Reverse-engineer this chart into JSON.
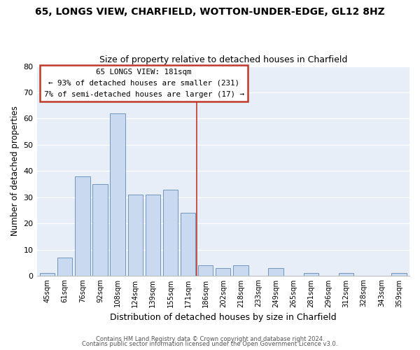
{
  "title": "65, LONGS VIEW, CHARFIELD, WOTTON-UNDER-EDGE, GL12 8HZ",
  "subtitle": "Size of property relative to detached houses in Charfield",
  "xlabel": "Distribution of detached houses by size in Charfield",
  "ylabel": "Number of detached properties",
  "bar_labels": [
    "45sqm",
    "61sqm",
    "76sqm",
    "92sqm",
    "108sqm",
    "124sqm",
    "139sqm",
    "155sqm",
    "171sqm",
    "186sqm",
    "202sqm",
    "218sqm",
    "233sqm",
    "249sqm",
    "265sqm",
    "281sqm",
    "296sqm",
    "312sqm",
    "328sqm",
    "343sqm",
    "359sqm"
  ],
  "bar_values": [
    1,
    7,
    38,
    35,
    62,
    31,
    31,
    33,
    24,
    4,
    3,
    4,
    0,
    3,
    0,
    1,
    0,
    1,
    0,
    0,
    1
  ],
  "bar_color": "#c9d9ef",
  "bar_edge_color": "#7096bf",
  "vline_x_idx": 9,
  "vline_color": "#c0392b",
  "ylim": [
    0,
    80
  ],
  "yticks": [
    0,
    10,
    20,
    30,
    40,
    50,
    60,
    70,
    80
  ],
  "annotation_title": "65 LONGS VIEW: 181sqm",
  "annotation_line1": "← 93% of detached houses are smaller (231)",
  "annotation_line2": "7% of semi-detached houses are larger (17) →",
  "annotation_box_color": "#ffffff",
  "annotation_box_edge": "#c0392b",
  "footer1": "Contains HM Land Registry data © Crown copyright and database right 2024.",
  "footer2": "Contains public sector information licensed under the Open Government Licence v3.0."
}
